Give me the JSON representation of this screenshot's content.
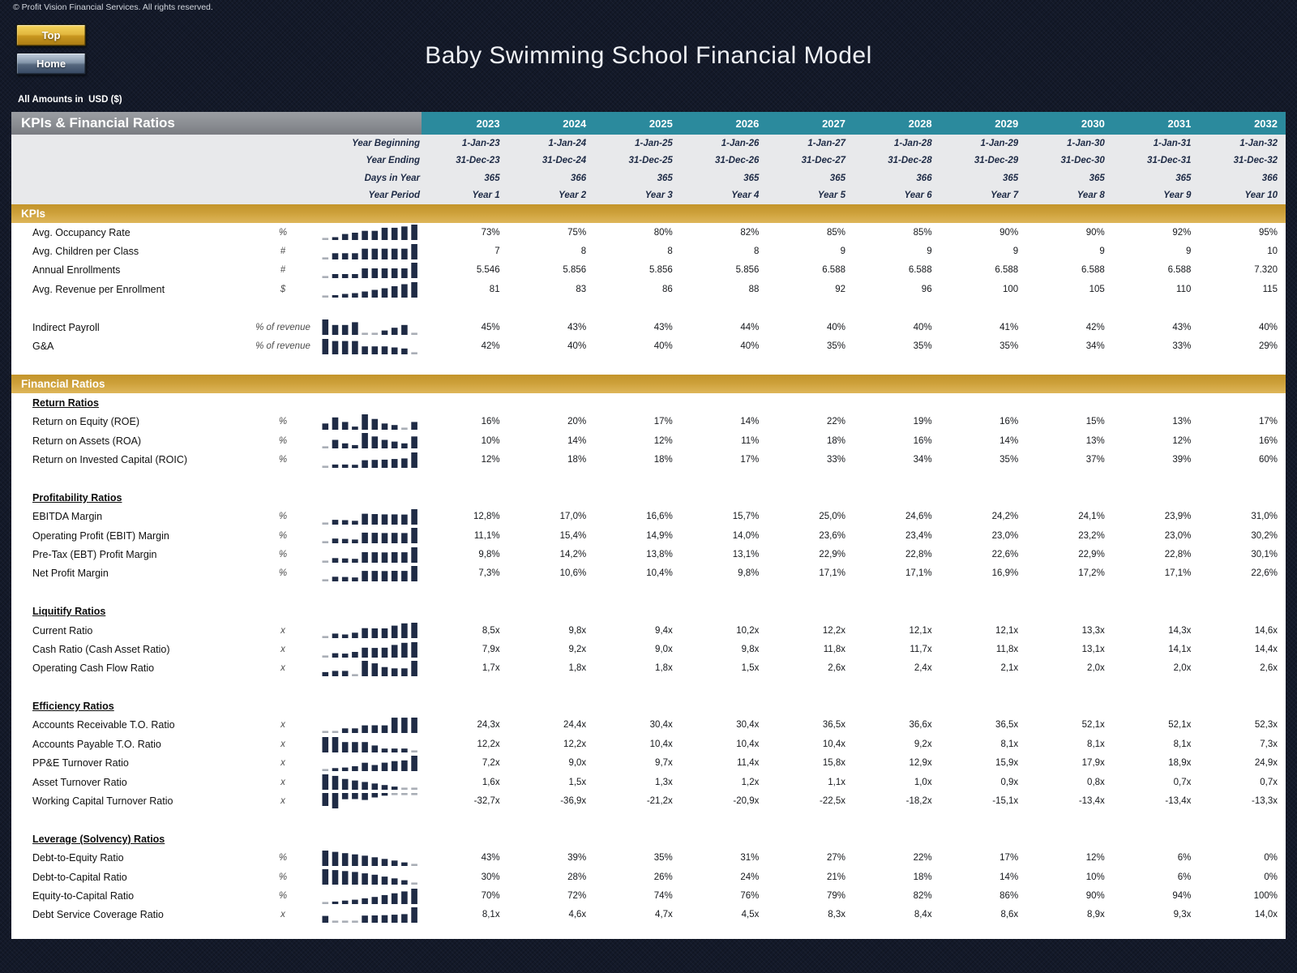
{
  "page": {
    "copyright": "© Profit Vision Financial Services. All rights reserved.",
    "title": "Baby Swimming School Financial Model",
    "amounts_note": "All Amounts in  USD ($)",
    "buttons": {
      "top": "Top",
      "home": "Home"
    }
  },
  "colors": {
    "background_navy": "#131929",
    "header_teal": "#2b8a9d",
    "band_gold_top": "#c3942a",
    "band_gold_bottom": "#deb65a",
    "sparkline_bar": "#1f2b45",
    "sparkline_dash": "#a9aeb6",
    "meta_bg": "#e8e9eb"
  },
  "table": {
    "header": {
      "title": "KPIs & Financial Ratios",
      "years": [
        "2023",
        "2024",
        "2025",
        "2026",
        "2027",
        "2028",
        "2029",
        "2030",
        "2031",
        "2032"
      ]
    },
    "meta_rows": [
      {
        "label": "Year Beginning",
        "values": [
          "1-Jan-23",
          "1-Jan-24",
          "1-Jan-25",
          "1-Jan-26",
          "1-Jan-27",
          "1-Jan-28",
          "1-Jan-29",
          "1-Jan-30",
          "1-Jan-31",
          "1-Jan-32"
        ]
      },
      {
        "label": "Year Ending",
        "values": [
          "31-Dec-23",
          "31-Dec-24",
          "31-Dec-25",
          "31-Dec-26",
          "31-Dec-27",
          "31-Dec-28",
          "31-Dec-29",
          "31-Dec-30",
          "31-Dec-31",
          "31-Dec-32"
        ]
      },
      {
        "label": "Days in Year",
        "values": [
          "365",
          "366",
          "365",
          "365",
          "365",
          "366",
          "365",
          "365",
          "365",
          "366"
        ]
      },
      {
        "label": "Year Period",
        "values": [
          "Year 1",
          "Year 2",
          "Year 3",
          "Year 4",
          "Year 5",
          "Year 6",
          "Year 7",
          "Year 8",
          "Year 9",
          "Year 10"
        ]
      }
    ],
    "sections": [
      {
        "type": "band",
        "label": "KPIs"
      },
      {
        "type": "row",
        "label": "Avg. Occupancy Rate",
        "unit": "%",
        "values": [
          "73%",
          "75%",
          "80%",
          "82%",
          "85%",
          "85%",
          "90%",
          "90%",
          "92%",
          "95%"
        ]
      },
      {
        "type": "row",
        "label": "Avg. Children per Class",
        "unit": "#",
        "values": [
          "7",
          "8",
          "8",
          "8",
          "9",
          "9",
          "9",
          "9",
          "9",
          "10"
        ]
      },
      {
        "type": "row",
        "label": "Annual Enrollments",
        "unit": "#",
        "values": [
          "5.546",
          "5.856",
          "5.856",
          "5.856",
          "6.588",
          "6.588",
          "6.588",
          "6.588",
          "6.588",
          "7.320"
        ]
      },
      {
        "type": "row",
        "label": "Avg. Revenue per Enrollment",
        "unit": "$",
        "values": [
          "81",
          "83",
          "86",
          "88",
          "92",
          "96",
          "100",
          "105",
          "110",
          "115"
        ]
      },
      {
        "type": "spacer"
      },
      {
        "type": "row",
        "label": "Indirect Payroll",
        "unit": "% of revenue",
        "values": [
          "45%",
          "43%",
          "43%",
          "44%",
          "40%",
          "40%",
          "41%",
          "42%",
          "43%",
          "40%"
        ]
      },
      {
        "type": "row",
        "label": "G&A",
        "unit": "% of revenue",
        "values": [
          "42%",
          "40%",
          "40%",
          "40%",
          "35%",
          "35%",
          "35%",
          "34%",
          "33%",
          "29%"
        ]
      },
      {
        "type": "spacer"
      },
      {
        "type": "band",
        "label": "Financial Ratios"
      },
      {
        "type": "subheader",
        "label": "Return Ratios"
      },
      {
        "type": "row",
        "label": "Return on Equity (ROE)",
        "unit": "%",
        "values": [
          "16%",
          "20%",
          "17%",
          "14%",
          "22%",
          "19%",
          "16%",
          "15%",
          "13%",
          "17%"
        ]
      },
      {
        "type": "row",
        "label": "Return on Assets (ROA)",
        "unit": "%",
        "values": [
          "10%",
          "14%",
          "12%",
          "11%",
          "18%",
          "16%",
          "14%",
          "13%",
          "12%",
          "16%"
        ]
      },
      {
        "type": "row",
        "label": "Return on Invested Capital (ROIC)",
        "unit": "%",
        "values": [
          "12%",
          "18%",
          "18%",
          "17%",
          "33%",
          "34%",
          "35%",
          "37%",
          "39%",
          "60%"
        ]
      },
      {
        "type": "spacer"
      },
      {
        "type": "subheader",
        "label": "Profitability Ratios"
      },
      {
        "type": "row",
        "label": "EBITDA Margin",
        "unit": "%",
        "values": [
          "12,8%",
          "17,0%",
          "16,6%",
          "15,7%",
          "25,0%",
          "24,6%",
          "24,2%",
          "24,1%",
          "23,9%",
          "31,0%"
        ]
      },
      {
        "type": "row",
        "label": "Operating Profit (EBIT) Margin",
        "unit": "%",
        "values": [
          "11,1%",
          "15,4%",
          "14,9%",
          "14,0%",
          "23,6%",
          "23,4%",
          "23,0%",
          "23,2%",
          "23,0%",
          "30,2%"
        ]
      },
      {
        "type": "row",
        "label": "Pre-Tax (EBT) Profit Margin",
        "unit": "%",
        "values": [
          "9,8%",
          "14,2%",
          "13,8%",
          "13,1%",
          "22,9%",
          "22,8%",
          "22,6%",
          "22,9%",
          "22,8%",
          "30,1%"
        ]
      },
      {
        "type": "row",
        "label": "Net Profit Margin",
        "unit": "%",
        "values": [
          "7,3%",
          "10,6%",
          "10,4%",
          "9,8%",
          "17,1%",
          "17,1%",
          "16,9%",
          "17,2%",
          "17,1%",
          "22,6%"
        ]
      },
      {
        "type": "spacer"
      },
      {
        "type": "subheader",
        "label": "Liquitify Ratios"
      },
      {
        "type": "row",
        "label": "Current Ratio",
        "unit": "x",
        "values": [
          "8,5x",
          "9,8x",
          "9,4x",
          "10,2x",
          "12,2x",
          "12,1x",
          "12,1x",
          "13,3x",
          "14,3x",
          "14,6x"
        ]
      },
      {
        "type": "row",
        "label": "Cash Ratio (Cash Asset Ratio)",
        "unit": "x",
        "values": [
          "7,9x",
          "9,2x",
          "9,0x",
          "9,8x",
          "11,8x",
          "11,7x",
          "11,8x",
          "13,1x",
          "14,1x",
          "14,4x"
        ]
      },
      {
        "type": "row",
        "label": "Operating Cash Flow Ratio",
        "unit": "x",
        "values": [
          "1,7x",
          "1,8x",
          "1,8x",
          "1,5x",
          "2,6x",
          "2,4x",
          "2,1x",
          "2,0x",
          "2,0x",
          "2,6x"
        ]
      },
      {
        "type": "spacer"
      },
      {
        "type": "subheader",
        "label": "Efficiency Ratios"
      },
      {
        "type": "row",
        "label": "Accounts Receivable T.O. Ratio",
        "unit": "x",
        "values": [
          "24,3x",
          "24,4x",
          "30,4x",
          "30,4x",
          "36,5x",
          "36,6x",
          "36,5x",
          "52,1x",
          "52,1x",
          "52,3x"
        ]
      },
      {
        "type": "row",
        "label": "Accounts Payable T.O. Ratio",
        "unit": "x",
        "values": [
          "12,2x",
          "12,2x",
          "10,4x",
          "10,4x",
          "10,4x",
          "9,2x",
          "8,1x",
          "8,1x",
          "8,1x",
          "7,3x"
        ]
      },
      {
        "type": "row",
        "label": "PP&E Turnover Ratio",
        "unit": "x",
        "values": [
          "7,2x",
          "9,0x",
          "9,7x",
          "11,4x",
          "15,8x",
          "12,9x",
          "15,9x",
          "17,9x",
          "18,9x",
          "24,9x"
        ]
      },
      {
        "type": "row",
        "label": "Asset Turnover Ratio",
        "unit": "x",
        "values": [
          "1,6x",
          "1,5x",
          "1,3x",
          "1,2x",
          "1,1x",
          "1,0x",
          "0,9x",
          "0,8x",
          "0,7x",
          "0,7x"
        ]
      },
      {
        "type": "row",
        "label": "Working Capital Turnover Ratio",
        "unit": "x",
        "values": [
          "-32,7x",
          "-36,9x",
          "-21,2x",
          "-20,9x",
          "-22,5x",
          "-18,2x",
          "-15,1x",
          "-13,4x",
          "-13,4x",
          "-13,3x"
        ]
      },
      {
        "type": "spacer"
      },
      {
        "type": "subheader",
        "label": "Leverage (Solvency) Ratios"
      },
      {
        "type": "row",
        "label": "Debt-to-Equity Ratio",
        "unit": "%",
        "values": [
          "43%",
          "39%",
          "35%",
          "31%",
          "27%",
          "22%",
          "17%",
          "12%",
          "6%",
          "0%"
        ]
      },
      {
        "type": "row",
        "label": "Debt-to-Capital Ratio",
        "unit": "%",
        "values": [
          "30%",
          "28%",
          "26%",
          "24%",
          "21%",
          "18%",
          "14%",
          "10%",
          "6%",
          "0%"
        ]
      },
      {
        "type": "row",
        "label": "Equity-to-Capital Ratio",
        "unit": "%",
        "values": [
          "70%",
          "72%",
          "74%",
          "76%",
          "79%",
          "82%",
          "86%",
          "90%",
          "94%",
          "100%"
        ]
      },
      {
        "type": "row",
        "label": "Debt Service Coverage Ratio",
        "unit": "x",
        "values": [
          "8,1x",
          "4,6x",
          "4,7x",
          "4,5x",
          "8,3x",
          "8,4x",
          "8,6x",
          "8,9x",
          "9,3x",
          "14,0x"
        ]
      }
    ]
  }
}
